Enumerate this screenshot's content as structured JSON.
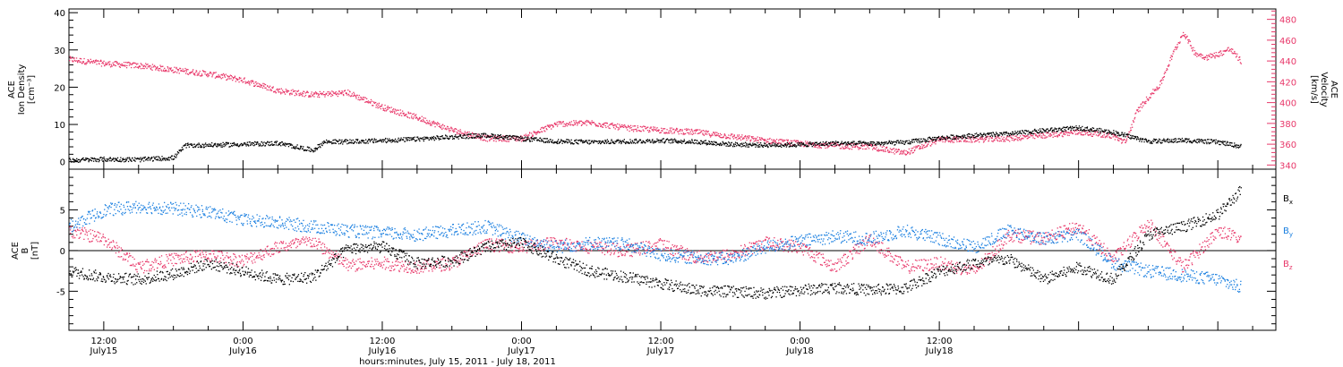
{
  "colors": {
    "density": "#000000",
    "velocity": "#e8386a",
    "bx": "#000000",
    "by": "#1a7fe0",
    "bz": "#e8386a"
  },
  "xaxis": {
    "ticks": [
      {
        "top": "12:00",
        "bottom": "July15"
      },
      {
        "top": "0:00",
        "bottom": "July16"
      },
      {
        "top": "12:00",
        "bottom": "July16"
      },
      {
        "top": "0:00",
        "bottom": "July17"
      },
      {
        "top": "12:00",
        "bottom": "July17"
      },
      {
        "top": "0:00",
        "bottom": "July18"
      },
      {
        "top": "12:00",
        "bottom": "July18"
      }
    ],
    "label": "hours:minutes, July 15, 2011 - July 18, 2011"
  },
  "chart_data": [
    {
      "type": "scatter",
      "panel": "plasma",
      "x_unit": "hours since 2011-07-15 00:00 UT",
      "xlim": [
        9,
        113
      ],
      "ylabel": {
        "line1": "ACE",
        "line2": "Ion Density",
        "line3": "[cm⁻³]"
      },
      "ylim": [
        -2,
        41
      ],
      "yticks": [
        "0",
        "10",
        "20",
        "30",
        "40"
      ],
      "right_axis": {
        "ylabel": {
          "line1": "ACE",
          "line2": "Velocity",
          "line3": "[km/s]"
        },
        "ylim": [
          336,
          490
        ],
        "yticks": [
          "340",
          "360",
          "380",
          "400",
          "420",
          "440",
          "460",
          "480"
        ]
      },
      "series": [
        {
          "axis": "left",
          "x": [
            9,
            12,
            15,
            18,
            19,
            21,
            24,
            27,
            30,
            31,
            33,
            36,
            39,
            42,
            45,
            48,
            51,
            54,
            57,
            60,
            63,
            66,
            69,
            72,
            75,
            78,
            81,
            84,
            87,
            90,
            93,
            96,
            99,
            102,
            105,
            108,
            110
          ],
          "y": [
            0.5,
            0.8,
            0.7,
            1.2,
            4.5,
            4.6,
            4.8,
            5.1,
            3.2,
            5.5,
            5.5,
            5.8,
            6.2,
            6.8,
            7.2,
            6.3,
            5.6,
            5.4,
            5.6,
            5.8,
            5.5,
            4.8,
            4.6,
            4.7,
            5.1,
            5.0,
            5.3,
            6.5,
            7.2,
            7.6,
            8.5,
            9.2,
            8.0,
            5.6,
            5.9,
            5.4,
            4.2
          ]
        },
        {
          "axis": "right",
          "x": [
            9,
            12,
            15,
            18,
            21,
            24,
            27,
            30,
            33,
            36,
            39,
            42,
            45,
            48,
            51,
            54,
            57,
            60,
            63,
            66,
            69,
            72,
            75,
            78,
            81,
            84,
            87,
            90,
            93,
            96,
            97,
            98,
            99,
            100,
            101,
            102,
            103,
            104,
            105,
            106,
            107,
            108,
            109,
            110
          ],
          "y": [
            442,
            438,
            436,
            432,
            428,
            422,
            412,
            408,
            410,
            396,
            386,
            374,
            366,
            366,
            380,
            381,
            376,
            374,
            372,
            368,
            364,
            361,
            359,
            358,
            352,
            365,
            365,
            366,
            369,
            372,
            371,
            370,
            368,
            362,
            392,
            406,
            418,
            445,
            468,
            448,
            444,
            447,
            452,
            440
          ]
        }
      ]
    },
    {
      "type": "scatter",
      "panel": "magnetic-field",
      "x_unit": "hours since 2011-07-15 00:00 UT",
      "xlim": [
        9,
        113
      ],
      "ylabel": {
        "line1": "ACE",
        "line2": "B",
        "line3": "[nT]"
      },
      "ylim": [
        -9.8,
        10
      ],
      "yticks": [
        "-5",
        "0",
        "5"
      ],
      "zero_line": true,
      "legend": {
        "placement": "right",
        "items": [
          "B",
          "B",
          "B"
        ],
        "subscripts": [
          "x",
          "y",
          "z"
        ]
      },
      "series": [
        {
          "name": "Bx",
          "x": [
            9,
            12,
            15,
            18,
            21,
            24,
            27,
            30,
            33,
            36,
            39,
            42,
            45,
            48,
            51,
            54,
            57,
            60,
            63,
            66,
            69,
            72,
            75,
            78,
            81,
            84,
            87,
            90,
            93,
            96,
            99,
            102,
            105,
            108,
            110
          ],
          "y": [
            -2.5,
            -3.2,
            -3.5,
            -2.8,
            -1.5,
            -2.5,
            -3.5,
            -3.2,
            0.3,
            0.5,
            -1.5,
            -1.2,
            0.5,
            1.0,
            -1.0,
            -2.5,
            -3.2,
            -4.0,
            -4.8,
            -5.0,
            -5.2,
            -4.8,
            -4.5,
            -4.8,
            -4.6,
            -2.5,
            -1.5,
            -1.0,
            -3.5,
            -2.0,
            -3.5,
            2.0,
            3.0,
            4.5,
            7.5
          ]
        },
        {
          "name": "By",
          "x": [
            9,
            12,
            15,
            18,
            21,
            24,
            27,
            30,
            33,
            36,
            39,
            42,
            45,
            48,
            51,
            54,
            57,
            60,
            63,
            66,
            69,
            72,
            75,
            78,
            81,
            84,
            87,
            90,
            93,
            96,
            99,
            102,
            105,
            108,
            110
          ],
          "y": [
            3.0,
            5.0,
            5.5,
            5.2,
            4.8,
            3.8,
            3.5,
            3.0,
            2.5,
            2.2,
            2.0,
            2.5,
            3.0,
            1.5,
            0.5,
            1.0,
            0.8,
            -0.5,
            -0.8,
            -1.0,
            0.5,
            1.2,
            1.8,
            1.5,
            2.5,
            1.5,
            0.5,
            2.5,
            1.5,
            2.0,
            -1.5,
            -2.5,
            -3.0,
            -3.5,
            -4.5
          ]
        },
        {
          "name": "Bz",
          "x": [
            9,
            12,
            15,
            18,
            21,
            24,
            27,
            30,
            33,
            36,
            39,
            42,
            45,
            48,
            51,
            54,
            57,
            60,
            63,
            66,
            69,
            72,
            75,
            78,
            81,
            84,
            87,
            90,
            93,
            96,
            99,
            102,
            105,
            108,
            110
          ],
          "y": [
            2.5,
            1.5,
            -2.0,
            -1.0,
            -0.5,
            -1.2,
            0.5,
            1.2,
            -1.8,
            -1.5,
            -2.0,
            -1.5,
            0.8,
            0.5,
            1.0,
            0.5,
            0.0,
            0.8,
            -0.8,
            -0.5,
            1.0,
            0.5,
            -2.0,
            1.5,
            -2.0,
            -1.5,
            -2.5,
            2.0,
            1.5,
            3.0,
            -1.0,
            3.5,
            -2.0,
            2.5,
            1.5
          ]
        }
      ]
    }
  ]
}
